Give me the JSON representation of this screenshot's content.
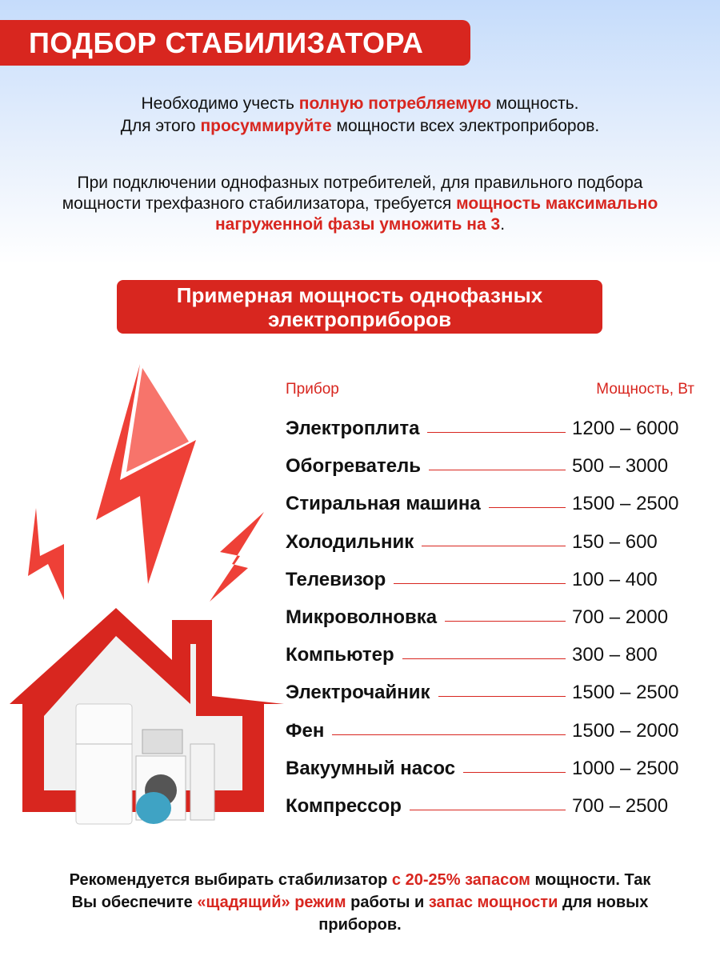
{
  "title": "ПОДБОР СТАБИЛИЗАТОРА",
  "intro": {
    "p1_a": "Необходимо учесть ",
    "p1_b": "полную потребляемую",
    "p1_c": " мощность.",
    "p1_d": "Для этого ",
    "p1_e": "просуммируйте",
    "p1_f": " мощности всех электроприборов.",
    "p2_a": "При подключении однофазных потребителей, для правильного подбора мощности трехфазного стабилизатора, требуется ",
    "p2_b": "мощность максимально нагруженной фазы умножить на 3",
    "p2_c": "."
  },
  "subtitle": "Примерная мощность однофазных электроприборов",
  "table": {
    "headers": [
      "Прибор",
      "Мощность, Вт"
    ],
    "rows": [
      {
        "name": "Электроплита",
        "power": "1200 – 6000"
      },
      {
        "name": "Обогреватель",
        "power": "500 – 3000"
      },
      {
        "name": "Стиральная машина",
        "power": "1500 – 2500"
      },
      {
        "name": "Холодильник",
        "power": "150 – 600"
      },
      {
        "name": "Телевизор",
        "power": "100 – 400"
      },
      {
        "name": "Микроволновка",
        "power": "700 – 2000"
      },
      {
        "name": "Компьютер",
        "power": "300 – 800"
      },
      {
        "name": "Электрочайник",
        "power": "1500 – 2500"
      },
      {
        "name": "Фен",
        "power": "1500 – 2000"
      },
      {
        "name": "Вакуумный насос",
        "power": "1000 – 2500"
      },
      {
        "name": "Компрессор",
        "power": "700 – 2500"
      }
    ]
  },
  "footer": {
    "a": "Рекомендуется выбирать стабилизатор ",
    "b": "с 20-25% запасом",
    "c": " мощности. Так Вы обеспечите ",
    "d": "«щадящий» режим",
    "e": " работы и ",
    "f": "запас мощности",
    "g": " для новых приборов."
  },
  "colors": {
    "accent": "#d8261f",
    "background_top": "#c5dcfb"
  },
  "icons": [
    "lightning-bolt-icon",
    "house-with-appliances-illustration"
  ]
}
